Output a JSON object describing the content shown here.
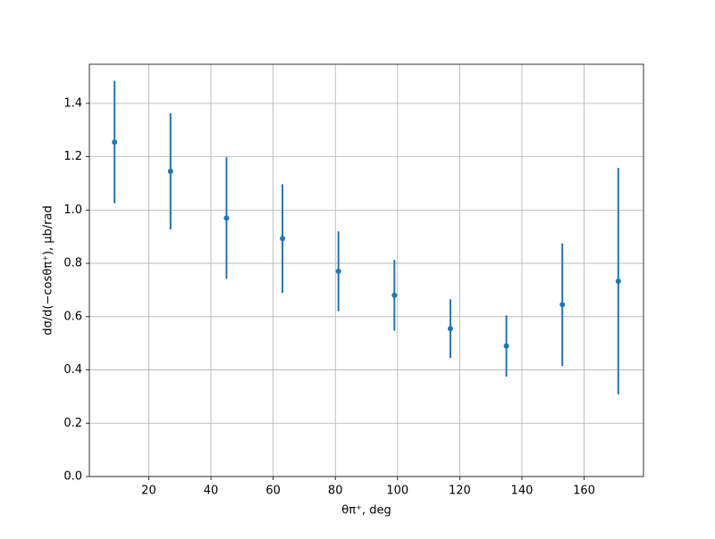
{
  "chart_data": {
    "type": "errorbar",
    "xlabel": "θπ⁺, deg",
    "ylabel": "dσ/d(−cosθπ⁺), μb/rad",
    "x": [
      9,
      27,
      45,
      63,
      81,
      99,
      117,
      135,
      153,
      171
    ],
    "series": [
      {
        "color": "#1f77b4",
        "values": [
          1.255,
          1.145,
          0.97,
          0.893,
          0.77,
          0.68,
          0.555,
          0.49,
          0.645,
          0.733
        ],
        "errors": [
          0.23,
          0.218,
          0.228,
          0.204,
          0.15,
          0.133,
          0.11,
          0.115,
          0.23,
          0.425
        ]
      }
    ],
    "xlim": [
      0.9,
      179.1
    ],
    "ylim": [
      0,
      1.547
    ],
    "xticks": [
      20,
      40,
      60,
      80,
      100,
      120,
      140,
      160
    ],
    "yticks": [
      {
        "value": 0,
        "label": "0.0"
      },
      {
        "value": 0.2,
        "label": "0.2"
      },
      {
        "value": 0.4,
        "label": "0.4"
      },
      {
        "value": 0.6,
        "label": "0.6"
      },
      {
        "value": 0.8,
        "label": "0.8"
      },
      {
        "value": 1.0,
        "label": "1.0"
      },
      {
        "value": 1.2,
        "label": "1.2"
      },
      {
        "value": 1.4,
        "label": "1.4"
      }
    ],
    "grid": true
  }
}
